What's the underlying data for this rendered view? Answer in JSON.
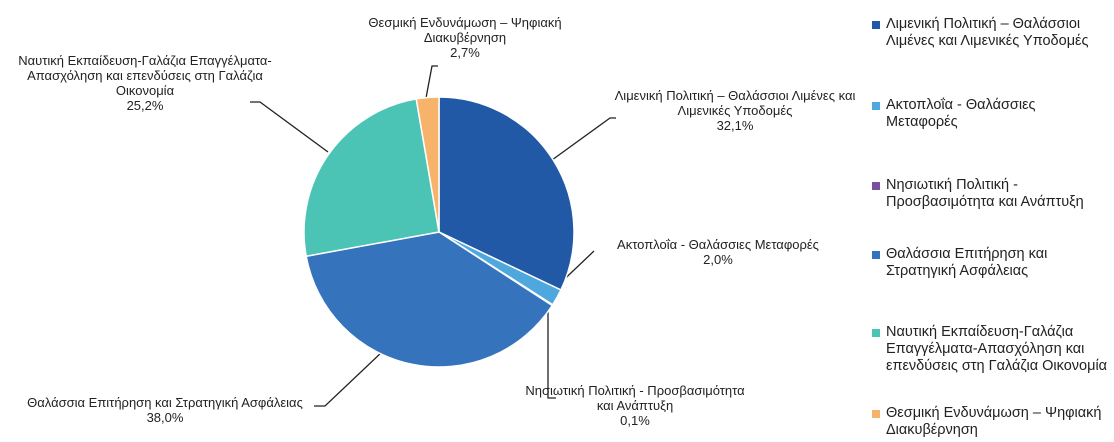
{
  "chart_data": {
    "type": "pie",
    "categories": [
      "Λιμενική Πολιτική – Θαλάσσιοι Λιμένες και Λιμενικές Υποδομές",
      "Ακτοπλοΐα - Θαλάσσιες Μεταφορές",
      "Νησιωτική Πολιτική - Προσβασιμότητα και Ανάπτυξη",
      "Θαλάσσια Επιτήρηση και Στρατηγική Ασφάλειας",
      "Ναυτική Εκπαίδευση-Γαλάζια Επαγγέλματα-Απασχόληση και επενδύσεις στη Γαλάζια Οικονομία",
      "Θεσμική Ενδυνάμωση – Ψηφιακή Διακυβέρνηση"
    ],
    "values": [
      32.1,
      2.0,
      0.1,
      38.0,
      25.2,
      2.7
    ],
    "value_labels": [
      "32,1%",
      "2,0%",
      "0,1%",
      "38,0%",
      "25,2%",
      "2,7%"
    ],
    "colors": [
      "#2159a6",
      "#4ea8de",
      "#7a4f9f",
      "#3574bd",
      "#4bc4b5",
      "#f7b36a"
    ],
    "legend": "right"
  }
}
